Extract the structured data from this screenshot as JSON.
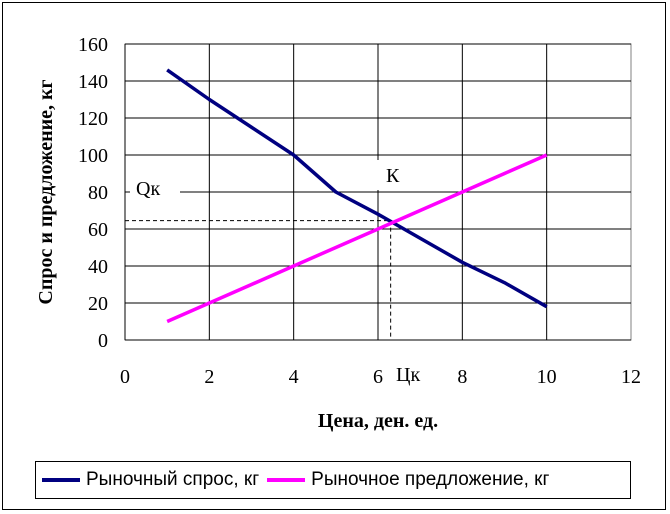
{
  "chart_data": {
    "type": "line",
    "title": "",
    "xlabel": "Цена, ден. ед.",
    "ylabel": "Спрос и предложение, кг",
    "xlim": [
      0,
      12
    ],
    "ylim": [
      0,
      160
    ],
    "x_ticks": [
      "0",
      "2",
      "4",
      "6",
      "8",
      "10",
      "12"
    ],
    "y_ticks": [
      "0",
      "20",
      "40",
      "60",
      "80",
      "100",
      "120",
      "140",
      "160"
    ],
    "grid": true,
    "legend_position": "bottom",
    "series": [
      {
        "name": "Рыночный спрос, кг",
        "color": "#000080",
        "x": [
          1,
          2,
          3,
          4,
          5,
          6,
          7,
          8,
          9,
          10
        ],
        "y": [
          146,
          130,
          115,
          100,
          80,
          68,
          55,
          42,
          31,
          18
        ]
      },
      {
        "name": "Рыночное предложение, кг",
        "color": "#ff00ff",
        "x": [
          1,
          2,
          3,
          4,
          5,
          6,
          7,
          8,
          9,
          10
        ],
        "y": [
          10,
          20,
          30,
          40,
          50,
          60,
          70,
          80,
          90,
          100
        ]
      }
    ],
    "annotations": {
      "equilibrium_label": "К",
      "quantity_label": "Qк",
      "price_label": "Цк",
      "equilibrium_x": 6.3,
      "equilibrium_y": 64.5
    }
  }
}
